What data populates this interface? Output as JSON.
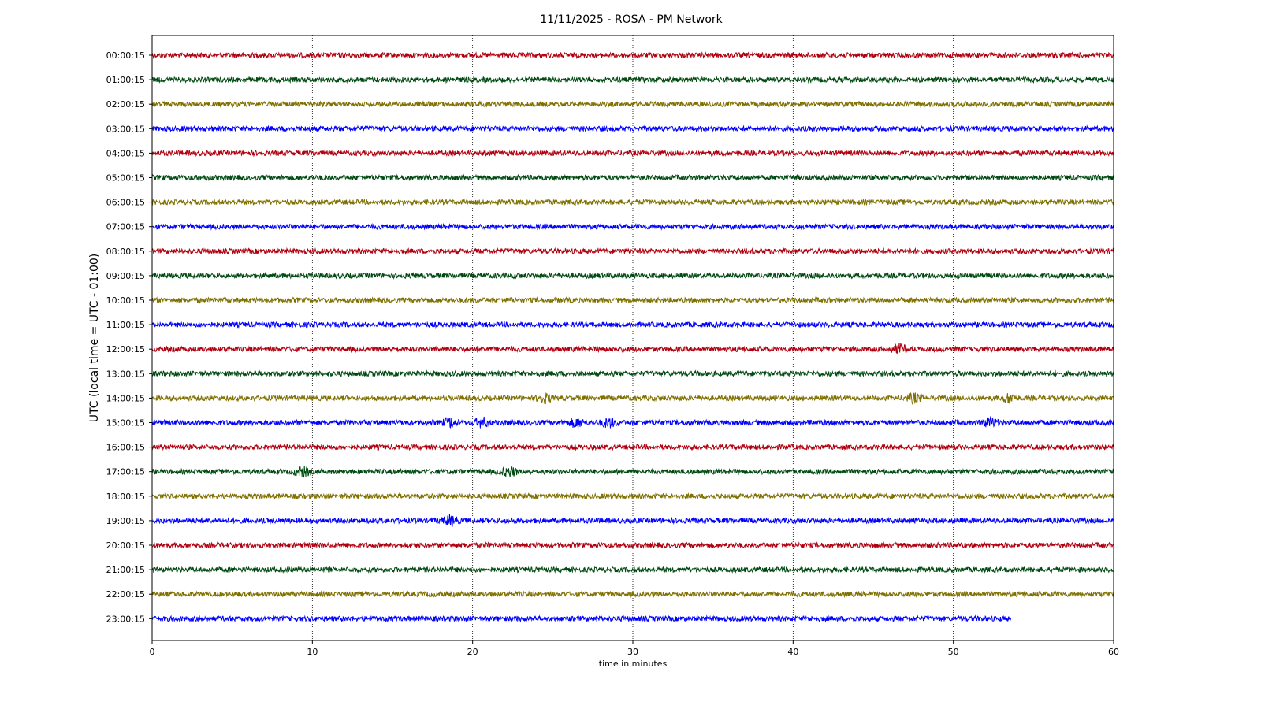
{
  "chart_data": {
    "type": "line",
    "title": "11/11/2025 - ROSA - PM Network",
    "xlabel": "time in minutes",
    "ylabel": "UTC (local time = UTC - 01:00)",
    "xlim": [
      0,
      60
    ],
    "x_ticks": [
      "0",
      "10",
      "20",
      "30",
      "40",
      "50",
      "60"
    ],
    "grid": "vertical dotted at 10, 20, 30, 40, 50",
    "colors": [
      "#b00010",
      "#004a12",
      "#7f7000",
      "#0000ff"
    ],
    "series": [
      {
        "label": "00:00:15",
        "color": "#b00010",
        "x_end": 60
      },
      {
        "label": "01:00:15",
        "color": "#004a12",
        "x_end": 60
      },
      {
        "label": "02:00:15",
        "color": "#7f7000",
        "x_end": 60
      },
      {
        "label": "03:00:15",
        "color": "#0000ff",
        "x_end": 60
      },
      {
        "label": "04:00:15",
        "color": "#b00010",
        "x_end": 60
      },
      {
        "label": "05:00:15",
        "color": "#004a12",
        "x_end": 60
      },
      {
        "label": "06:00:15",
        "color": "#7f7000",
        "x_end": 60
      },
      {
        "label": "07:00:15",
        "color": "#0000ff",
        "x_end": 60
      },
      {
        "label": "08:00:15",
        "color": "#b00010",
        "x_end": 60
      },
      {
        "label": "09:00:15",
        "color": "#004a12",
        "x_end": 60
      },
      {
        "label": "10:00:15",
        "color": "#7f7000",
        "x_end": 60
      },
      {
        "label": "11:00:15",
        "color": "#0000ff",
        "x_end": 60
      },
      {
        "label": "12:00:15",
        "color": "#b00010",
        "x_end": 60
      },
      {
        "label": "13:00:15",
        "color": "#004a12",
        "x_end": 60
      },
      {
        "label": "14:00:15",
        "color": "#7f7000",
        "x_end": 60
      },
      {
        "label": "15:00:15",
        "color": "#0000ff",
        "x_end": 60
      },
      {
        "label": "16:00:15",
        "color": "#b00010",
        "x_end": 60
      },
      {
        "label": "17:00:15",
        "color": "#004a12",
        "x_end": 60
      },
      {
        "label": "18:00:15",
        "color": "#7f7000",
        "x_end": 60
      },
      {
        "label": "19:00:15",
        "color": "#0000ff",
        "x_end": 60
      },
      {
        "label": "20:00:15",
        "color": "#b00010",
        "x_end": 60
      },
      {
        "label": "21:00:15",
        "color": "#004a12",
        "x_end": 60
      },
      {
        "label": "22:00:15",
        "color": "#7f7000",
        "x_end": 60
      },
      {
        "label": "23:00:15",
        "color": "#0000ff",
        "x_end": 53.6
      }
    ],
    "events": [
      {
        "row": 14,
        "x": 24.5
      },
      {
        "row": 14,
        "x": 47.5
      },
      {
        "row": 14,
        "x": 53.5
      },
      {
        "row": 15,
        "x": 18.6
      },
      {
        "row": 15,
        "x": 20.6
      },
      {
        "row": 15,
        "x": 26.5
      },
      {
        "row": 15,
        "x": 28.5
      },
      {
        "row": 15,
        "x": 52.3
      },
      {
        "row": 17,
        "x": 9.4
      },
      {
        "row": 17,
        "x": 22.3
      },
      {
        "row": 19,
        "x": 18.6
      },
      {
        "row": 12,
        "x": 46.6
      }
    ]
  }
}
